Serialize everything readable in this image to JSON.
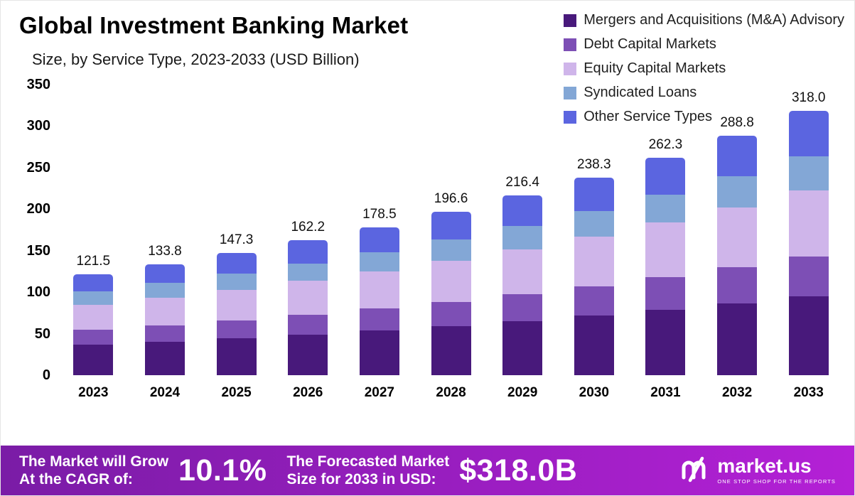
{
  "chart_data": {
    "type": "bar",
    "stacked": true,
    "title": "Global Investment Banking Market",
    "subtitle": "Size, by Service Type, 2023-2033 (USD Billion)",
    "unit": "USD Billion",
    "grid": false,
    "legend_position": "top-right",
    "categories": [
      "2023",
      "2024",
      "2025",
      "2026",
      "2027",
      "2028",
      "2029",
      "2030",
      "2031",
      "2032",
      "2033"
    ],
    "totals": [
      121.5,
      133.8,
      147.3,
      162.2,
      178.5,
      196.6,
      216.4,
      238.3,
      262.3,
      288.8,
      318.0
    ],
    "total_labels": [
      "121.5",
      "133.8",
      "147.3",
      "162.2",
      "178.5",
      "196.6",
      "216.4",
      "238.3",
      "262.3",
      "288.8",
      "318.0"
    ],
    "series": [
      {
        "name": "Mergers and Acquisitions (M&A) Advisory",
        "color": "#48197b",
        "values": [
          36.5,
          40.1,
          44.2,
          48.7,
          53.6,
          59.0,
          64.9,
          71.5,
          78.7,
          86.6,
          95.4
        ]
      },
      {
        "name": "Debt Capital Markets",
        "color": "#7d4fb5",
        "values": [
          18.2,
          20.1,
          22.1,
          24.3,
          26.8,
          29.5,
          32.5,
          35.7,
          39.3,
          43.3,
          47.7
        ]
      },
      {
        "name": "Equity Capital Markets",
        "color": "#cfb5ea",
        "values": [
          30.4,
          33.5,
          36.8,
          40.6,
          44.6,
          49.2,
          54.1,
          59.6,
          65.6,
          72.2,
          79.5
        ]
      },
      {
        "name": "Syndicated Loans",
        "color": "#83a7d6",
        "values": [
          15.8,
          17.4,
          19.1,
          21.1,
          23.2,
          25.6,
          28.1,
          31.0,
          34.1,
          37.5,
          41.3
        ]
      },
      {
        "name": "Other Service Types",
        "color": "#5b65e0",
        "values": [
          20.7,
          22.7,
          25.0,
          27.6,
          30.3,
          33.4,
          36.8,
          40.5,
          44.6,
          49.1,
          54.1
        ]
      }
    ],
    "y_axis": {
      "max": 350,
      "ticks": [
        "350",
        "300",
        "250",
        "200",
        "150",
        "100",
        "50",
        "0"
      ]
    },
    "ylim": [
      0,
      350
    ]
  },
  "banner": {
    "cagr_label_line1": "The Market will Grow",
    "cagr_label_line2": "At the CAGR of:",
    "cagr_value": "10.1%",
    "forecast_label_line1": "The Forecasted Market",
    "forecast_label_line2": "Size for 2033 in USD:",
    "forecast_value": "$318.0B",
    "brand": {
      "name": "market.us",
      "tagline": "ONE STOP SHOP FOR THE REPORTS"
    }
  },
  "colors": {
    "banner_gradient_start": "#7a1ca6",
    "banner_gradient_end": "#b420d6",
    "text": "#111111"
  }
}
